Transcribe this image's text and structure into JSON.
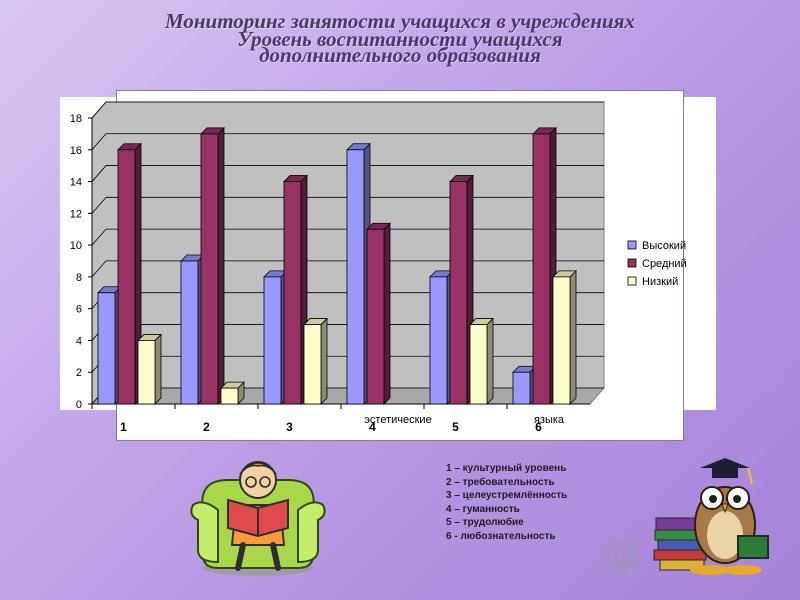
{
  "slide": {
    "title_line1": "Мониторинг занятости учащихся в учреждениях",
    "title_line2": "Уровень воспитанности учащихся",
    "title_line3": "дополнительного образования"
  },
  "chart_data": {
    "type": "bar",
    "categories": [
      "1",
      "2",
      "3",
      "4",
      "5",
      "6"
    ],
    "series": [
      {
        "name": "Высокий",
        "values": [
          7,
          9,
          8,
          16,
          8,
          2
        ],
        "color": "#9999ff"
      },
      {
        "name": "Средний",
        "values": [
          16,
          17,
          14,
          11,
          14,
          17
        ],
        "color": "#993366"
      },
      {
        "name": "Низкий",
        "values": [
          4,
          1,
          5,
          0,
          5,
          8
        ],
        "color": "#ffffcc"
      }
    ],
    "ylim": [
      0,
      18
    ],
    "yticks": [
      "0",
      "2",
      "4",
      "6",
      "8",
      "10",
      "12",
      "14",
      "16",
      "18"
    ],
    "grid": true,
    "legend_position": "right",
    "background_category_remnants": [
      "эстетические",
      "языка"
    ]
  },
  "notes": [
    "1 – культурный уровень",
    "2 – требовательность",
    "3 – целеустремлённость",
    "4 – гуманность",
    "5 – трудолюбие",
    "6 - любознательность"
  ],
  "icons": {
    "reader": "reading-person-in-armchair-icon",
    "owl": "owl-with-books-icon",
    "watermark": "presentation-watermark-icon"
  }
}
